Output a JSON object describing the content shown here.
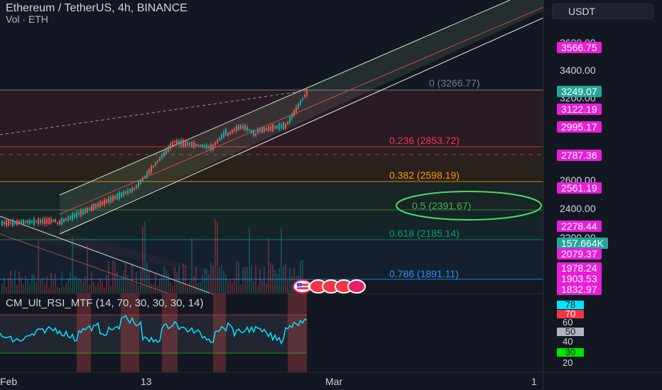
{
  "header": {
    "title": "Ethereum / TetherUS, 4h, BINANCE",
    "subtitle": "Vol · ETH",
    "currency": "USDT"
  },
  "price_axis": {
    "ticks": [
      "3600.00",
      "3400.00",
      "3200.00",
      "2600.00",
      "2400.00",
      "2200.00"
    ],
    "labels": [
      {
        "text": "3566.75",
        "color": "#e91ed8"
      },
      {
        "text": "3249.07",
        "color": "#26a69a"
      },
      {
        "text": "3122.19",
        "color": "#e91ed8"
      },
      {
        "text": "2995.17",
        "color": "#e91ed8"
      },
      {
        "text": "2787.36",
        "color": "#e91ed8"
      },
      {
        "text": "2561.19",
        "color": "#e91ed8"
      },
      {
        "text": "2278.44",
        "color": "#e91ed8"
      },
      {
        "text": "157.664K",
        "color": "#26a69a"
      },
      {
        "text": "2079.37",
        "color": "#e91ed8"
      },
      {
        "text": "1978.24",
        "color": "#e91ed8"
      },
      {
        "text": "1903.53",
        "color": "#e91ed8"
      },
      {
        "text": "1832.97",
        "color": "#e91ed8"
      }
    ]
  },
  "fib_levels": [
    {
      "text": "0 (3266.77)",
      "color": "#787b86"
    },
    {
      "text": "0.236 (2853.72)",
      "color": "#f23645"
    },
    {
      "text": "0.382 (2598.19)",
      "color": "#ff9800"
    },
    {
      "text": "0.5 (2391.67)",
      "color": "#4caf50"
    },
    {
      "text": "0.618 (2185.14)",
      "color": "#089981"
    },
    {
      "text": "0.786 (1891.11)",
      "color": "#2196f3"
    }
  ],
  "indicator": {
    "title": "CM_Ult_RSI_MTF (14, 70, 30, 30, 30, 14)",
    "labels": [
      {
        "text": "78",
        "bg": "#00e5ff",
        "fg": "#131722"
      },
      {
        "text": "70",
        "bg": "#f23645",
        "fg": "#ffffff"
      },
      {
        "text": "50",
        "bg": "#b2b5be",
        "fg": "#131722"
      },
      {
        "text": "30",
        "bg": "#00e600",
        "fg": "#131722"
      }
    ],
    "ticks": [
      "60",
      "40",
      "20"
    ]
  },
  "time_axis": {
    "ticks": [
      "Feb",
      "13",
      "Mar",
      "1"
    ]
  },
  "colors": {
    "background": "#131722",
    "up": "#26a69a",
    "down": "#ef5350",
    "rsi_line": "#00e5ff",
    "accent": "#e91ed8"
  }
}
